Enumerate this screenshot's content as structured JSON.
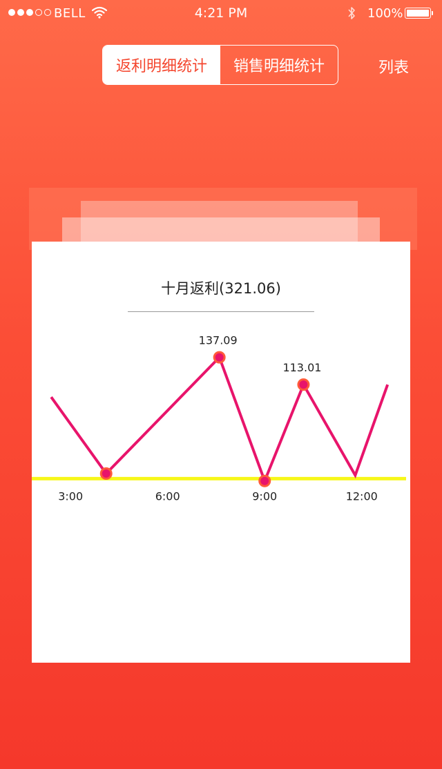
{
  "status_bar": {
    "carrier": "BELL",
    "time": "4:21 PM",
    "battery": "100%"
  },
  "tabs": [
    {
      "label": "返利明细统计",
      "active": true
    },
    {
      "label": "销售明细统计",
      "active": false
    }
  ],
  "list_link": "列表",
  "colors": {
    "accent": "#f4452d",
    "line": "#e8146b",
    "point_ring": "#ff5a3a",
    "baseline": "#f7f719"
  },
  "chart_data": {
    "type": "line",
    "title": "十月返利(321.06)",
    "x_ticks": [
      "3:00",
      "6:00",
      "9:00",
      "12:00"
    ],
    "x": [
      2.4,
      4.1,
      7.6,
      9.0,
      10.2,
      11.8,
      12.8
    ],
    "y": [
      102,
      34.5,
      137.09,
      28,
      113.01,
      33,
      113
    ],
    "markers": [
      1,
      2,
      3,
      4
    ],
    "data_labels": [
      {
        "index": 2,
        "text": "137.09"
      },
      {
        "index": 4,
        "text": "113.01"
      }
    ],
    "xlim": [
      1.8,
      13.5
    ],
    "ylim": [
      26,
      160
    ],
    "baseline": 30,
    "grid": false,
    "legend": "none"
  }
}
